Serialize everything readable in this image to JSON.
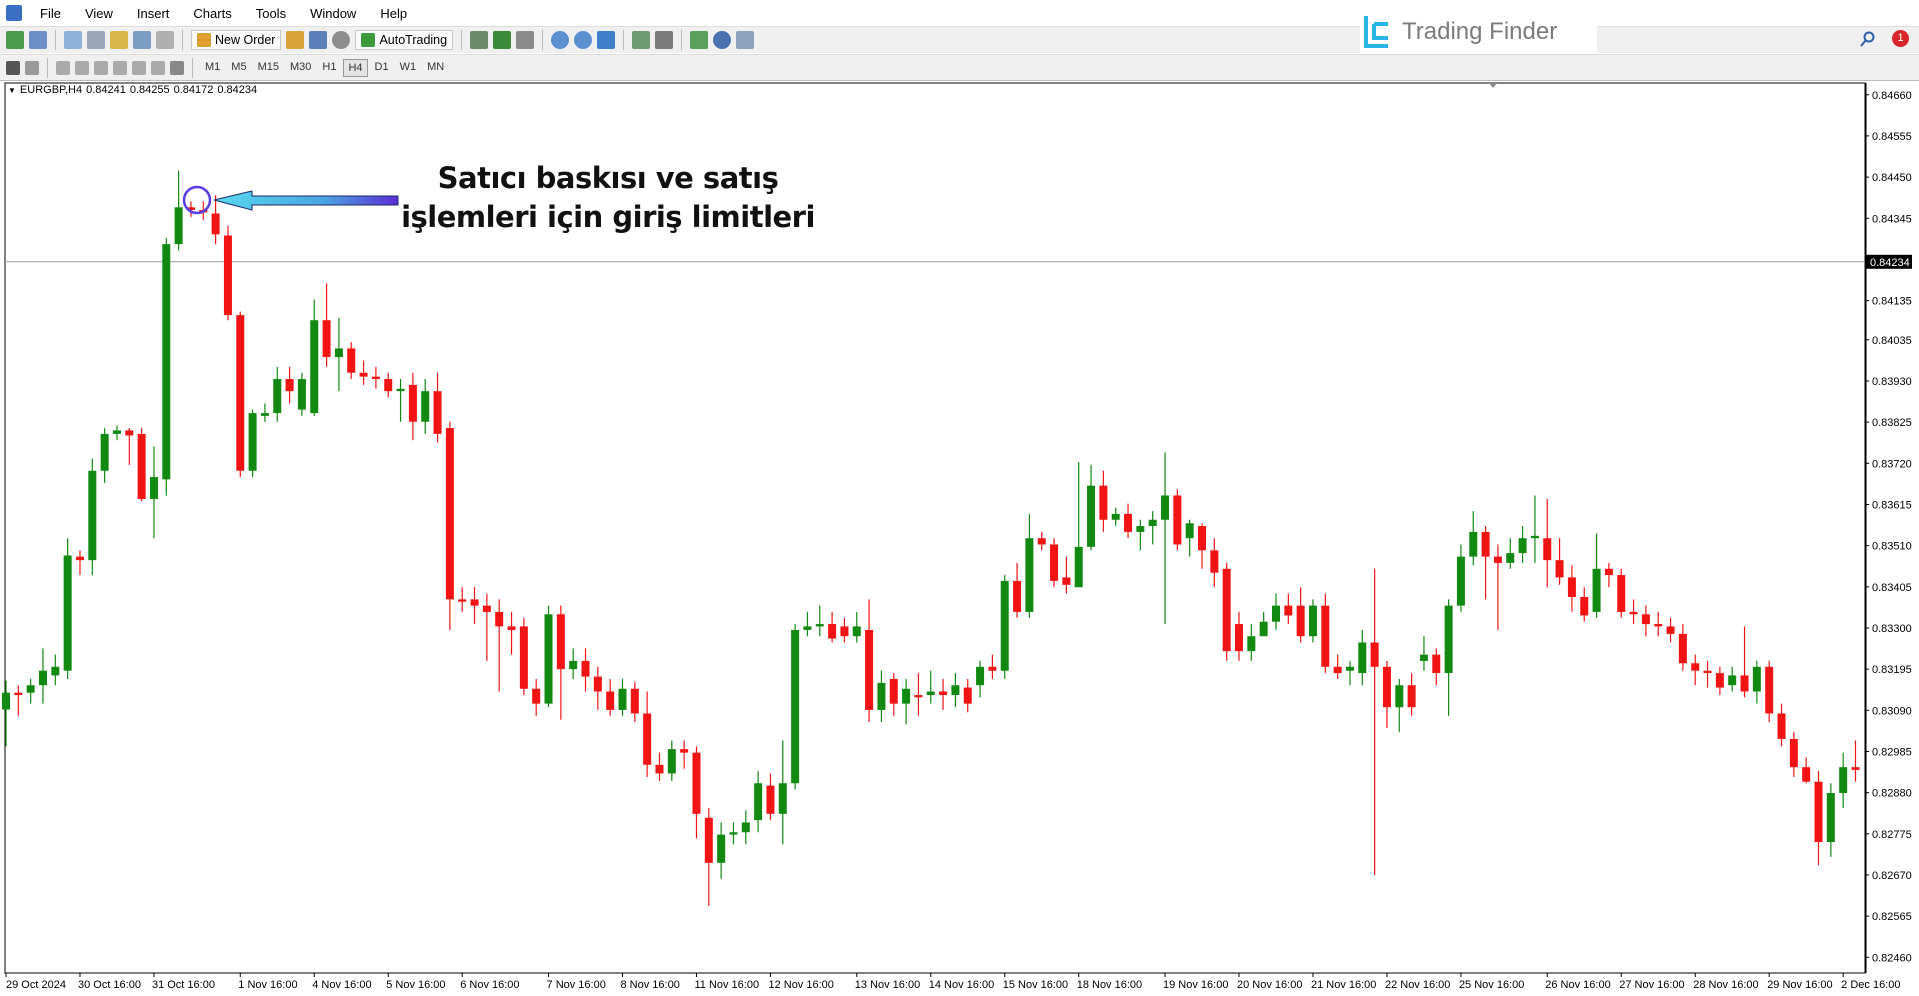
{
  "ui": {
    "menu": [
      "File",
      "View",
      "Insert",
      "Charts",
      "Tools",
      "Window",
      "Help"
    ],
    "new_order": "New Order",
    "auto_trading": "AutoTrading",
    "timeframes": [
      "M1",
      "M5",
      "M15",
      "M30",
      "H1",
      "H4",
      "D1",
      "W1",
      "MN"
    ],
    "brand": "Trading Finder",
    "alerts": 1
  },
  "chart_data": {
    "type": "candlestick",
    "symbol": "EURGBP,H4",
    "header_ohlc": [
      0.84241,
      0.84255,
      0.84172,
      0.84234
    ],
    "annotation": [
      "Satıcı baskısı ve satış",
      "işlemleri için giriş limitleri"
    ],
    "bid_line": 0.84234,
    "up_color": "#128a12",
    "down_color": "#f21414",
    "ylim": [
      0.8242,
      0.8469
    ],
    "yticks": [
      {
        "value": 0.8466,
        "label": "0.84660"
      },
      0.84555,
      {
        "value": 0.8445,
        "label": "0.84450"
      },
      0.84345,
      0.84135,
      0.84035,
      {
        "value": 0.8393,
        "label": "0.83930"
      },
      0.83825,
      {
        "value": 0.8372,
        "label": "0.83720"
      },
      0.83615,
      {
        "value": 0.8351,
        "label": "0.83510"
      },
      0.83405,
      {
        "value": 0.833,
        "label": "0.83300"
      },
      0.83195,
      {
        "value": 0.8309,
        "label": "0.83090"
      },
      0.82985,
      {
        "value": 0.8288,
        "label": "0.82880"
      },
      0.82775,
      {
        "value": 0.8267,
        "label": "0.82670"
      },
      0.82565,
      {
        "value": 0.8246,
        "label": "0.82460"
      }
    ],
    "categories": [
      "29 Oct 2024",
      null,
      null,
      null,
      null,
      null,
      "30 Oct 16:00",
      null,
      null,
      null,
      null,
      null,
      "31 Oct 16:00",
      null,
      null,
      null,
      null,
      null,
      null,
      "1 Nov 16:00",
      null,
      null,
      null,
      null,
      null,
      "4 Nov 16:00",
      null,
      null,
      null,
      null,
      null,
      "5 Nov 16:00",
      null,
      null,
      null,
      null,
      null,
      "6 Nov 16:00",
      null,
      null,
      null,
      null,
      null,
      null,
      "7 Nov 16:00",
      null,
      null,
      null,
      null,
      null,
      "8 Nov 16:00",
      null,
      null,
      null,
      null,
      null,
      "11 Nov 16:00",
      null,
      null,
      null,
      null,
      null,
      "12 Nov 16:00",
      null,
      null,
      null,
      null,
      null,
      null,
      "13 Nov 16:00",
      null,
      null,
      null,
      null,
      null,
      "14 Nov 16:00",
      null,
      null,
      null,
      null,
      null,
      "15 Nov 16:00",
      null,
      null,
      null,
      null,
      null,
      "18 Nov 16:00",
      null,
      null,
      null,
      null,
      null,
      null,
      "19 Nov 16:00",
      null,
      null,
      null,
      null,
      null,
      "20 Nov 16:00",
      null,
      null,
      null,
      null,
      null,
      "21 Nov 16:00",
      null,
      null,
      null,
      null,
      null,
      "22 Nov 16:00",
      null,
      null,
      null,
      null,
      null,
      "25 Nov 16:00",
      null,
      null,
      null,
      null,
      null,
      null,
      "26 Nov 16:00",
      null,
      null,
      null,
      null,
      null,
      "27 Nov 16:00",
      null,
      null,
      null,
      null,
      null,
      "28 Nov 16:00",
      null,
      null,
      null,
      null,
      null,
      "29 Nov 16:00",
      null,
      null,
      null,
      null,
      null,
      "2 Dec 16:00",
      null
    ],
    "open": [
      0.83092,
      0.83135,
      0.83135,
      0.83154,
      0.83179,
      0.83191,
      0.83482,
      0.83473,
      0.83701,
      0.83795,
      0.83804,
      0.83795,
      0.83629,
      0.83679,
      0.84279,
      0.84373,
      0.84366,
      0.84357,
      0.84301,
      0.84098,
      0.83701,
      0.83841,
      0.83848,
      0.83935,
      0.83857,
      0.83848,
      0.84085,
      0.83991,
      0.84013,
      0.83951,
      0.83941,
      0.83935,
      0.83904,
      0.8392,
      0.83826,
      0.83904,
      0.8381,
      0.83373,
      0.83373,
      0.83357,
      0.83341,
      0.83304,
      0.83304,
      0.83145,
      0.83107,
      0.83335,
      0.83195,
      0.83216,
      0.83176,
      0.83138,
      0.83091,
      0.83145,
      0.83082,
      0.82951,
      0.82929,
      0.82991,
      0.82982,
      0.82816,
      0.82701,
      0.82773,
      0.82779,
      0.8281,
      0.82898,
      0.82826,
      0.82904,
      0.83295,
      0.83304,
      0.8331,
      0.83304,
      0.83279,
      0.83295,
      0.83091,
      0.8317,
      0.83107,
      0.83129,
      0.83129,
      0.83138,
      0.83129,
      0.83148,
      0.83154,
      0.83201,
      0.83191,
      0.8342,
      0.83341,
      0.83529,
      0.83513,
      0.83429,
      0.83404,
      0.83507,
      0.83663,
      0.83576,
      0.83591,
      0.83545,
      0.8356,
      0.83576,
      0.83638,
      0.83529,
      0.8356,
      0.83498,
      0.83451,
      0.8331,
      0.83241,
      0.83279,
      0.83316,
      0.83357,
      0.83357,
      0.83279,
      0.83357,
      0.83201,
      0.83191,
      0.83185,
      0.83263,
      0.83201,
      0.83098,
      0.83154,
      0.83216,
      0.83232,
      0.83185,
      0.83357,
      0.83482,
      0.83545,
      0.83482,
      0.83466,
      0.83491,
      0.83529,
      0.83529,
      0.83473,
      0.83429,
      0.83379,
      0.83341,
      0.83451,
      0.83435,
      0.83341,
      0.83335,
      0.8331,
      0.83304,
      0.83285,
      0.8321,
      0.83191,
      0.83185,
      0.83154,
      0.83179,
      0.83138,
      0.83201,
      0.83082,
      0.83017,
      0.82945,
      0.82908,
      0.82754,
      0.82879,
      0.82945
    ],
    "high": [
      0.83166,
      0.83154,
      0.8317,
      0.83248,
      0.83232,
      0.83529,
      0.83498,
      0.83732,
      0.8381,
      0.83816,
      0.8381,
      0.8381,
      0.83763,
      0.84295,
      0.84466,
      0.84388,
      0.84388,
      0.84404,
      0.84326,
      0.84107,
      0.83857,
      0.83873,
      0.83966,
      0.83966,
      0.83951,
      0.84138,
      0.84179,
      0.84091,
      0.84029,
      0.83982,
      0.83966,
      0.83951,
      0.83935,
      0.83951,
      0.83935,
      0.83951,
      0.83826,
      0.83404,
      0.83404,
      0.83388,
      0.83373,
      0.83341,
      0.83326,
      0.8317,
      0.83357,
      0.83357,
      0.83248,
      0.83248,
      0.83201,
      0.8317,
      0.8317,
      0.83163,
      0.83138,
      0.82982,
      0.83013,
      0.83013,
      0.82998,
      0.82841,
      0.82804,
      0.82804,
      0.82835,
      0.82935,
      0.82929,
      0.83013,
      0.8331,
      0.83341,
      0.83357,
      0.83341,
      0.83326,
      0.83341,
      0.83373,
      0.83191,
      0.83185,
      0.8317,
      0.83185,
      0.83191,
      0.8317,
      0.83185,
      0.8317,
      0.83216,
      0.83232,
      0.83435,
      0.83466,
      0.83591,
      0.83545,
      0.83529,
      0.83482,
      0.83723,
      0.83716,
      0.83701,
      0.83607,
      0.83617,
      0.83576,
      0.83598,
      0.83748,
      0.83654,
      0.83576,
      0.83567,
      0.83529,
      0.83466,
      0.83341,
      0.8331,
      0.83341,
      0.83388,
      0.83388,
      0.83404,
      0.83373,
      0.83388,
      0.83232,
      0.83216,
      0.83295,
      0.83451,
      0.83216,
      0.8317,
      0.83185,
      0.83279,
      0.83248,
      0.83373,
      0.83513,
      0.83598,
      0.8356,
      0.83513,
      0.83529,
      0.8356,
      0.83638,
      0.83629,
      0.83529,
      0.8346,
      0.83404,
      0.83541,
      0.83466,
      0.83451,
      0.83373,
      0.83357,
      0.83341,
      0.83326,
      0.8331,
      0.83232,
      0.83216,
      0.83201,
      0.83201,
      0.83304,
      0.83216,
      0.83216,
      0.83107,
      0.83035,
      0.8297,
      0.82935,
      0.82904,
      0.82982,
      0.83013
    ],
    "low": [
      0.82998,
      0.83076,
      0.83107,
      0.83107,
      0.83154,
      0.8317,
      0.83435,
      0.83435,
      0.8367,
      0.83779,
      0.83716,
      0.83623,
      0.83529,
      0.83638,
      0.84263,
      0.84348,
      0.84341,
      0.84279,
      0.84085,
      0.83685,
      0.83685,
      0.83826,
      0.83826,
      0.83873,
      0.83841,
      0.83841,
      0.83966,
      0.83904,
      0.83935,
      0.8392,
      0.8391,
      0.83888,
      0.83826,
      0.83779,
      0.83795,
      0.83773,
      0.83295,
      0.83341,
      0.8331,
      0.83216,
      0.83138,
      0.83232,
      0.83129,
      0.83076,
      0.83098,
      0.83066,
      0.8317,
      0.83138,
      0.83091,
      0.83076,
      0.83076,
      0.8306,
      0.8292,
      0.8291,
      0.8291,
      0.82941,
      0.82763,
      0.82591,
      0.8266,
      0.82748,
      0.82748,
      0.82779,
      0.8281,
      0.82748,
      0.82888,
      0.83279,
      0.83279,
      0.83263,
      0.83263,
      0.83263,
      0.8306,
      0.8306,
      0.83076,
      0.83054,
      0.83076,
      0.83107,
      0.83091,
      0.83098,
      0.83085,
      0.83123,
      0.8317,
      0.8317,
      0.83326,
      0.83326,
      0.83498,
      0.83404,
      0.83388,
      0.83404,
      0.83498,
      0.83545,
      0.8356,
      0.83529,
      0.83498,
      0.83513,
      0.8331,
      0.83498,
      0.83482,
      0.83451,
      0.83404,
      0.83216,
      0.83216,
      0.83216,
      0.83279,
      0.83295,
      0.8331,
      0.83263,
      0.83263,
      0.83185,
      0.8317,
      0.83154,
      0.83154,
      0.8267,
      0.83045,
      0.83035,
      0.83076,
      0.83191,
      0.83154,
      0.83076,
      0.83341,
      0.8346,
      0.83373,
      0.83295,
      0.83451,
      0.83466,
      0.83466,
      0.83404,
      0.8341,
      0.83341,
      0.83316,
      0.83326,
      0.83404,
      0.83326,
      0.8331,
      0.83279,
      0.83279,
      0.83263,
      0.83191,
      0.83154,
      0.83148,
      0.83129,
      0.83138,
      0.83123,
      0.83107,
      0.8306,
      0.82998,
      0.8292,
      0.82904,
      0.82695,
      0.82716,
      0.82841,
      0.82908
    ],
    "close": [
      0.83135,
      0.83129,
      0.83154,
      0.83191,
      0.83201,
      0.83485,
      0.83473,
      0.83701,
      0.83795,
      0.83804,
      0.83791,
      0.83629,
      0.83685,
      0.84279,
      0.84373,
      0.84366,
      0.8436,
      0.84304,
      0.84098,
      0.83701,
      0.83848,
      0.83848,
      0.83935,
      0.83904,
      0.83935,
      0.84085,
      0.83991,
      0.84013,
      0.83951,
      0.83941,
      0.83935,
      0.83904,
      0.8391,
      0.83826,
      0.83904,
      0.83795,
      0.83373,
      0.83367,
      0.83357,
      0.83341,
      0.83304,
      0.83295,
      0.83145,
      0.83107,
      0.83335,
      0.83195,
      0.83216,
      0.83176,
      0.83138,
      0.83091,
      0.83145,
      0.83082,
      0.82951,
      0.82929,
      0.82991,
      0.82982,
      0.82826,
      0.82701,
      0.82773,
      0.82779,
      0.82804,
      0.82904,
      0.82826,
      0.82904,
      0.83295,
      0.83304,
      0.8331,
      0.83273,
      0.83279,
      0.83304,
      0.83091,
      0.8316,
      0.83107,
      0.83145,
      0.83123,
      0.83138,
      0.83129,
      0.83154,
      0.83107,
      0.83201,
      0.83191,
      0.8342,
      0.83341,
      0.83529,
      0.83513,
      0.8342,
      0.8341,
      0.83507,
      0.83663,
      0.83576,
      0.83591,
      0.83545,
      0.8356,
      0.83576,
      0.83638,
      0.83513,
      0.83567,
      0.83498,
      0.83441,
      0.83241,
      0.83241,
      0.83279,
      0.83316,
      0.83357,
      0.83332,
      0.83279,
      0.83357,
      0.83201,
      0.83185,
      0.83201,
      0.83263,
      0.83201,
      0.83098,
      0.83154,
      0.83098,
      0.83232,
      0.83185,
      0.83357,
      0.83482,
      0.83545,
      0.83482,
      0.83466,
      0.83491,
      0.83529,
      0.83535,
      0.83473,
      0.83429,
      0.83379,
      0.83332,
      0.83451,
      0.83435,
      0.83341,
      0.83335,
      0.8331,
      0.83304,
      0.83285,
      0.8321,
      0.83191,
      0.83185,
      0.83148,
      0.83179,
      0.83138,
      0.83201,
      0.83082,
      0.83017,
      0.82945,
      0.82908,
      0.82754,
      0.82879,
      0.82945,
      0.82938
    ]
  }
}
